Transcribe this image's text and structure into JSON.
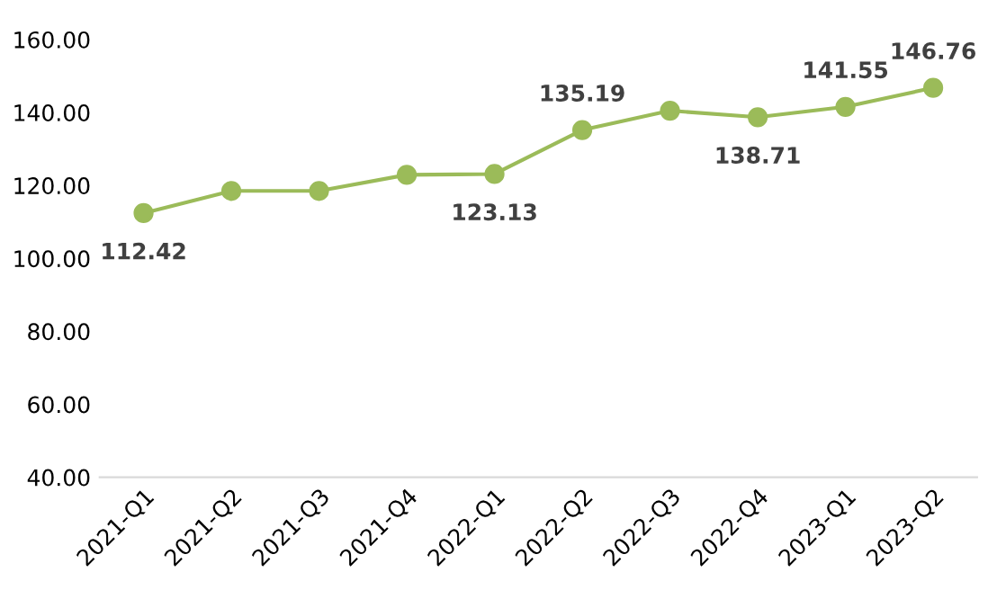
{
  "chart_data": {
    "type": "line",
    "categories": [
      "2021-Q1",
      "2021-Q2",
      "2021-Q3",
      "2021-Q4",
      "2022-Q1",
      "2022-Q2",
      "2022-Q3",
      "2022-Q4",
      "2023-Q1",
      "2023-Q2"
    ],
    "series": [
      {
        "color": "#9bbb59",
        "values": [
          112.42,
          118.5,
          118.5,
          122.9,
          123.13,
          135.19,
          140.5,
          138.71,
          141.55,
          146.76
        ],
        "value_labels": [
          "112.42",
          null,
          null,
          null,
          "123.13",
          "135.19",
          null,
          "138.71",
          "141.55",
          "146.76"
        ]
      }
    ],
    "ylim": [
      40,
      160
    ],
    "yticks": [
      {
        "value": 40,
        "label": "40.00"
      },
      {
        "value": 60,
        "label": "60.00"
      },
      {
        "value": 80,
        "label": "80.00"
      },
      {
        "value": 100,
        "label": "100.00"
      },
      {
        "value": 120,
        "label": "120.00"
      },
      {
        "value": 140,
        "label": "140.00"
      },
      {
        "value": 160,
        "label": "160.00"
      }
    ],
    "marker": "circle",
    "line_style": "solid",
    "grid": false,
    "legend": false
  }
}
